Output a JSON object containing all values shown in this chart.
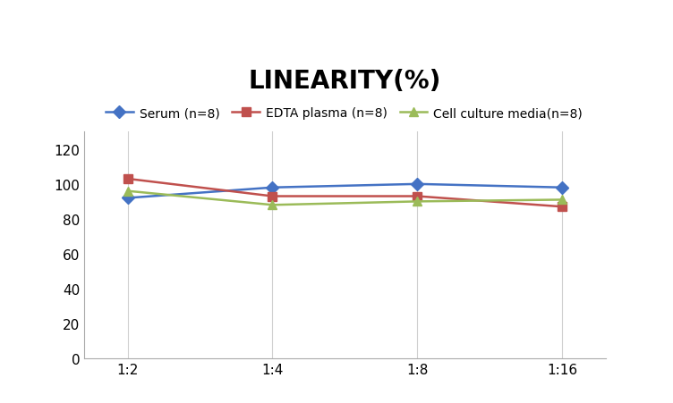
{
  "title": "LINEARITY(%)",
  "title_fontsize": 20,
  "title_fontweight": "bold",
  "x_labels": [
    "1:2",
    "1:4",
    "1:8",
    "1:16"
  ],
  "x_positions": [
    0,
    1,
    2,
    3
  ],
  "series": [
    {
      "label": "Serum (n=8)",
      "values": [
        92,
        98,
        100,
        98
      ],
      "color": "#4472C4",
      "marker": "D",
      "markersize": 7,
      "linewidth": 1.8
    },
    {
      "label": "EDTA plasma (n=8)",
      "values": [
        103,
        93,
        93,
        87
      ],
      "color": "#C0504D",
      "marker": "s",
      "markersize": 7,
      "linewidth": 1.8
    },
    {
      "label": "Cell culture media(n=8)",
      "values": [
        96,
        88,
        90,
        91
      ],
      "color": "#9BBB59",
      "marker": "^",
      "markersize": 7,
      "linewidth": 1.8
    }
  ],
  "ylim": [
    0,
    130
  ],
  "yticks": [
    0,
    20,
    40,
    60,
    80,
    100,
    120
  ],
  "background_color": "#ffffff",
  "legend_fontsize": 10,
  "grid_color": "#d0d0d0",
  "grid_linewidth": 0.8,
  "tick_fontsize": 11
}
